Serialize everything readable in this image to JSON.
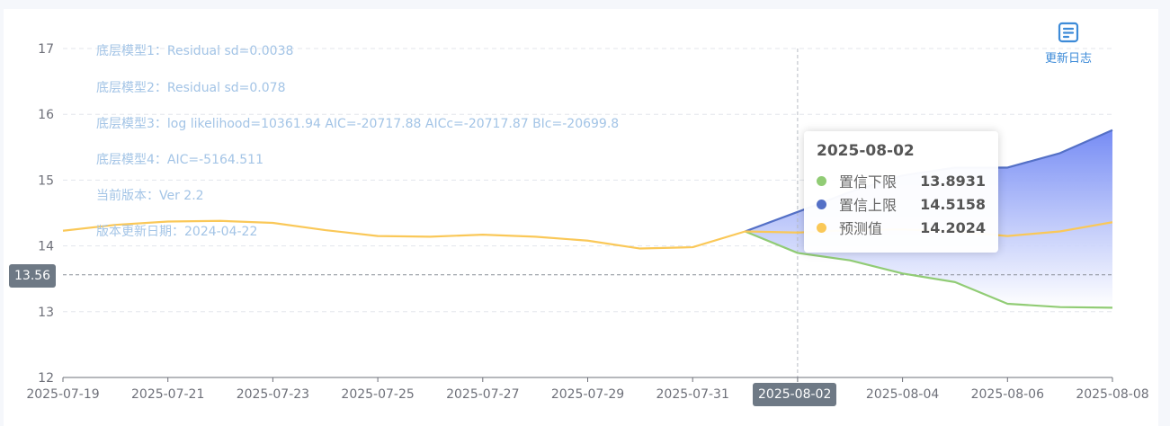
{
  "info_lines": [
    "底层模型1：Residual sd=0.0038",
    "底层模型2：Residual sd=0.078",
    "底层模型3：log likelihood=10361.94 AIC=-20717.88 AICc=-20717.87 BIc=-20699.8",
    "底层模型4：AIC=-5164.511",
    "当前版本：Ver 2.2",
    "版本更新日期：2024-04-22"
  ],
  "changelog": {
    "label": "更新日志",
    "icon": "document-icon"
  },
  "axis_pointer": {
    "y_value_label": "13.56",
    "x_value_label": "2025-08-02"
  },
  "tooltip": {
    "title": "2025-08-02",
    "rows": [
      {
        "name": "置信下限",
        "value": "13.8931",
        "color": "#91cc75"
      },
      {
        "name": "置信上限",
        "value": "14.5158",
        "color": "#5470c6"
      },
      {
        "name": "预测值",
        "value": "14.2024",
        "color": "#fac858"
      }
    ]
  },
  "chart_data": {
    "type": "line",
    "x": [
      "2025-07-19",
      "2025-07-20",
      "2025-07-21",
      "2025-07-22",
      "2025-07-23",
      "2025-07-24",
      "2025-07-25",
      "2025-07-26",
      "2025-07-27",
      "2025-07-28",
      "2025-07-29",
      "2025-07-30",
      "2025-07-31",
      "2025-08-01",
      "2025-08-02",
      "2025-08-03",
      "2025-08-04",
      "2025-08-05",
      "2025-08-06",
      "2025-08-07",
      "2025-08-08"
    ],
    "x_tick_labels": [
      "2025-07-19",
      "2025-07-21",
      "2025-07-23",
      "2025-07-25",
      "2025-07-27",
      "2025-07-29",
      "2025-07-31",
      "2025-08-02",
      "2025-08-04",
      "2025-08-06",
      "2025-08-08"
    ],
    "ylim": [
      12,
      17
    ],
    "y_ticks": [
      12,
      13,
      14,
      15,
      16,
      17
    ],
    "grid": true,
    "series": [
      {
        "name": "预测值",
        "color": "#fac858",
        "values": [
          14.23,
          14.32,
          14.37,
          14.38,
          14.35,
          14.24,
          14.15,
          14.14,
          14.17,
          14.14,
          14.08,
          13.96,
          13.98,
          14.22,
          14.2024,
          14.24,
          14.25,
          14.22,
          14.15,
          14.22,
          14.36
        ]
      },
      {
        "name": "置信下限",
        "color": "#91cc75",
        "values": [
          null,
          null,
          null,
          null,
          null,
          null,
          null,
          null,
          null,
          null,
          null,
          null,
          null,
          14.22,
          13.8931,
          13.78,
          13.58,
          13.45,
          13.12,
          13.07,
          13.06
        ]
      },
      {
        "name": "置信上限",
        "color": "#5470c6",
        "values": [
          null,
          null,
          null,
          null,
          null,
          null,
          null,
          null,
          null,
          null,
          null,
          null,
          null,
          14.22,
          14.5158,
          14.82,
          15.07,
          15.19,
          15.19,
          15.41,
          15.76
        ]
      }
    ],
    "hover_index": 14,
    "pointer_y": 13.56
  }
}
